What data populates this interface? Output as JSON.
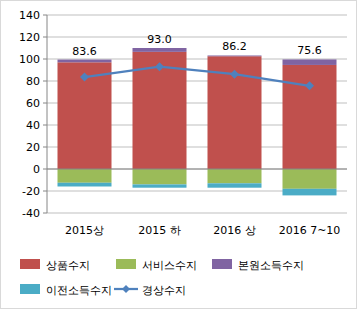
{
  "chart_data": {
    "type": "bar",
    "stacked": true,
    "categories": [
      "2015상",
      "2015 하",
      "2016 상",
      "2016 7~10"
    ],
    "series": [
      {
        "name": "상품수지",
        "color": "#c0504d",
        "values": [
          97,
          106.5,
          102.5,
          94.6
        ]
      },
      {
        "name": "서비스수지",
        "color": "#9bbb59",
        "values": [
          -12.5,
          -14,
          -13,
          -18
        ]
      },
      {
        "name": "본원소득수지",
        "color": "#8064a2",
        "values": [
          2.5,
          3.5,
          0.7,
          5
        ]
      },
      {
        "name": "이전소득수지",
        "color": "#4bacc6",
        "values": [
          -3.4,
          -3,
          -4,
          -6
        ]
      },
      {
        "name": "경상수지",
        "type": "line",
        "color": "#4f81bd",
        "marker": "diamond",
        "line_style": "solid",
        "data_labels": true,
        "values": [
          83.6,
          93.0,
          86.2,
          75.6
        ],
        "value_labels": [
          "83.6",
          "93.0",
          "86.2",
          "75.6"
        ]
      }
    ],
    "ylim": [
      -40,
      140
    ],
    "yticks": [
      -40,
      -20,
      0,
      20,
      40,
      60,
      80,
      100,
      120,
      140
    ],
    "grid": true,
    "legend": "bottom"
  }
}
